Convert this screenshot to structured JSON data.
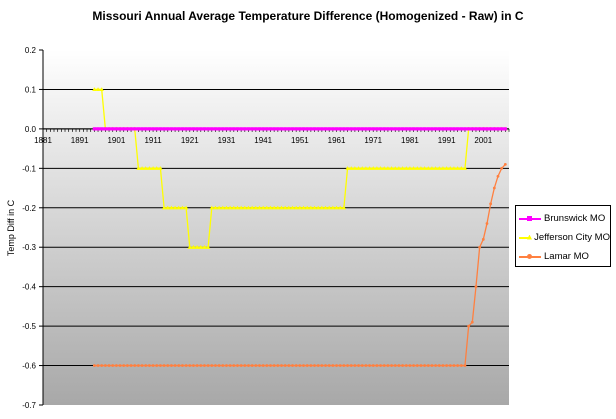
{
  "chart_data": {
    "type": "line",
    "title": "Missouri Annual Average Temperature Difference (Homogenized - Raw) in C",
    "xlabel": "",
    "ylabel": "Temp Diff in C",
    "xlim": [
      1881,
      2008
    ],
    "ylim": [
      -0.7,
      0.2
    ],
    "x_ticks": [
      "1881",
      "1891",
      "1901",
      "1911",
      "1921",
      "1931",
      "1941",
      "1951",
      "1961",
      "1971",
      "1981",
      "1991",
      "2001"
    ],
    "y_ticks": [
      "0.2",
      "0.1",
      "0.0",
      "-0.1",
      "-0.2",
      "-0.3",
      "-0.4",
      "-0.5",
      "-0.6",
      "-0.7"
    ],
    "grid": true,
    "legend_position": "right",
    "series": [
      {
        "name": "Brunswick MO",
        "color": "#ff00ff",
        "marker": "square",
        "steps": [
          {
            "from": 1895,
            "to": 2007,
            "value": 0.0
          }
        ]
      },
      {
        "name": "Jefferson City MO",
        "color": "#ffff00",
        "marker": "triangle",
        "steps": [
          {
            "from": 1895,
            "to": 1897,
            "value": 0.1
          },
          {
            "from": 1898,
            "to": 1906,
            "value": 0.0
          },
          {
            "from": 1907,
            "to": 1913,
            "value": -0.1
          },
          {
            "from": 1914,
            "to": 1920,
            "value": -0.2
          },
          {
            "from": 1921,
            "to": 1926,
            "value": -0.3
          },
          {
            "from": 1927,
            "to": 1948,
            "value": -0.2
          },
          {
            "from": 1949,
            "to": 1963,
            "value": -0.2
          },
          {
            "from": 1964,
            "to": 1985,
            "value": -0.1
          },
          {
            "from": 1986,
            "to": 1996,
            "value": -0.1
          },
          {
            "from": 1997,
            "to": 2007,
            "value": 0.0
          }
        ]
      },
      {
        "name": "Lamar MO",
        "color": "#ff8040",
        "marker": "circle",
        "steps": [
          {
            "from": 1895,
            "to": 1996,
            "value": -0.6
          },
          {
            "from": 1997,
            "to": 1997,
            "value": -0.5
          },
          {
            "from": 1998,
            "to": 1998,
            "value": -0.49
          },
          {
            "from": 1999,
            "to": 1999,
            "value": -0.4
          },
          {
            "from": 2000,
            "to": 2000,
            "value": -0.3
          },
          {
            "from": 2001,
            "to": 2001,
            "value": -0.28
          },
          {
            "from": 2002,
            "to": 2002,
            "value": -0.24
          },
          {
            "from": 2003,
            "to": 2003,
            "value": -0.19
          },
          {
            "from": 2004,
            "to": 2004,
            "value": -0.15
          },
          {
            "from": 2005,
            "to": 2005,
            "value": -0.12
          },
          {
            "from": 2006,
            "to": 2006,
            "value": -0.1
          },
          {
            "from": 2007,
            "to": 2007,
            "value": -0.09
          }
        ]
      }
    ]
  }
}
